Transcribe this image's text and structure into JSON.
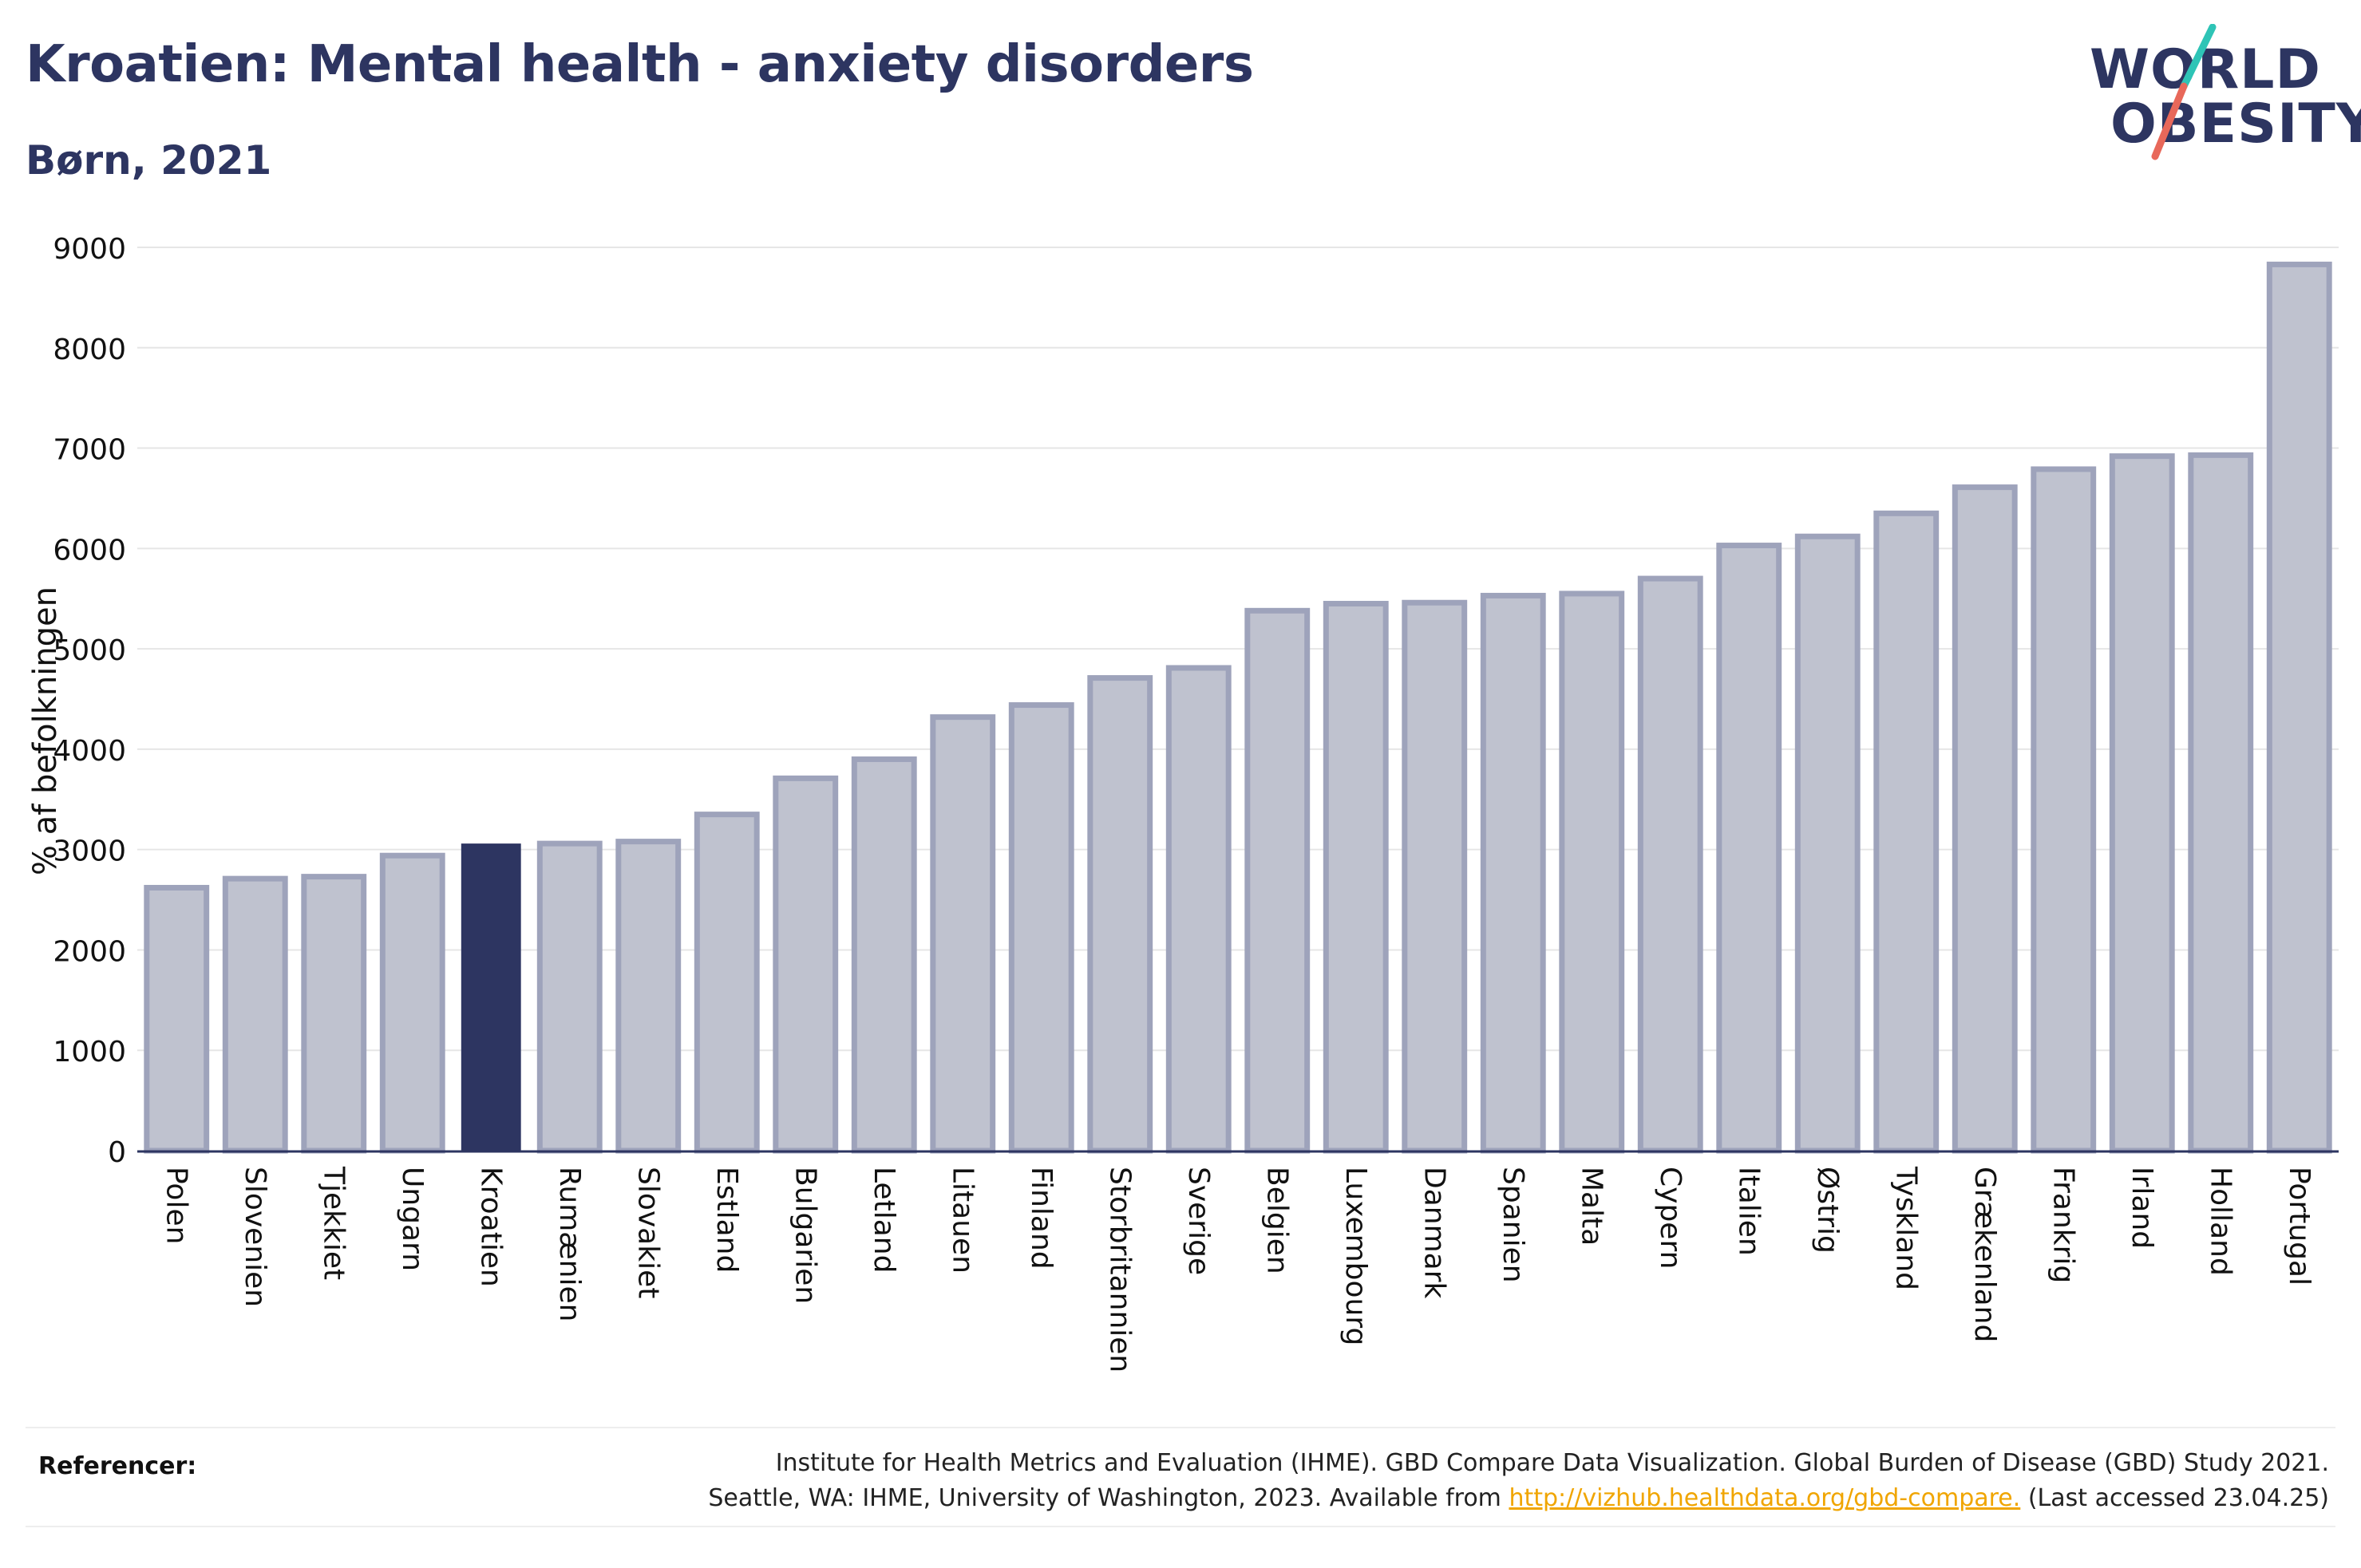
{
  "title": "Kroatien: Mental health - anxiety disorders",
  "subtitle": "Børn, 2021",
  "logo": {
    "line1": "WORLD",
    "line2": "OBESITY",
    "accent_colors": [
      "#2ec4b6",
      "#e8685a"
    ]
  },
  "colors": {
    "highlight": "#2d3561",
    "bar_fill": "#bfc2cf",
    "bar_stroke": "#9ea3bb",
    "grid": "#e6e6e6",
    "axis": "#2d3561"
  },
  "chart_data": {
    "type": "bar",
    "title": "",
    "xlabel": "",
    "ylabel": "% af befolkningen",
    "ylim": [
      0,
      9000
    ],
    "yticks": [
      0,
      1000,
      2000,
      3000,
      4000,
      5000,
      6000,
      7000,
      8000,
      9000
    ],
    "grid": "horizontal",
    "highlight": "Kroatien",
    "categories": [
      "Polen",
      "Slovenien",
      "Tjekkiet",
      "Ungarn",
      "Kroatien",
      "Rumænien",
      "Slovakiet",
      "Estland",
      "Bulgarien",
      "Letland",
      "Litauen",
      "Finland",
      "Storbritannien",
      "Sverige",
      "Belgien",
      "Luxembourg",
      "Danmark",
      "Spanien",
      "Malta",
      "Cypern",
      "Italien",
      "Østrig",
      "Tyskland",
      "Grækenland",
      "Frankrig",
      "Irland",
      "Holland",
      "Portugal"
    ],
    "values": [
      2620,
      2710,
      2730,
      2940,
      3060,
      3060,
      3080,
      3350,
      3710,
      3900,
      4320,
      4440,
      4710,
      4810,
      5380,
      5450,
      5460,
      5530,
      5550,
      5700,
      6030,
      6120,
      6350,
      6610,
      6790,
      6920,
      6930,
      8830
    ]
  },
  "references": {
    "label": "Referencer:",
    "line1": "Institute for Health Metrics and Evaluation (IHME). GBD Compare Data Visualization. Global Burden of Disease (GBD) Study 2021.",
    "line2_prefix": "Seattle, WA: IHME, University of Washington, 2023. Available from ",
    "link": "http://vizhub.healthdata.org/gbd-compare.",
    "line2_suffix": " (Last accessed 23.04.25)"
  }
}
